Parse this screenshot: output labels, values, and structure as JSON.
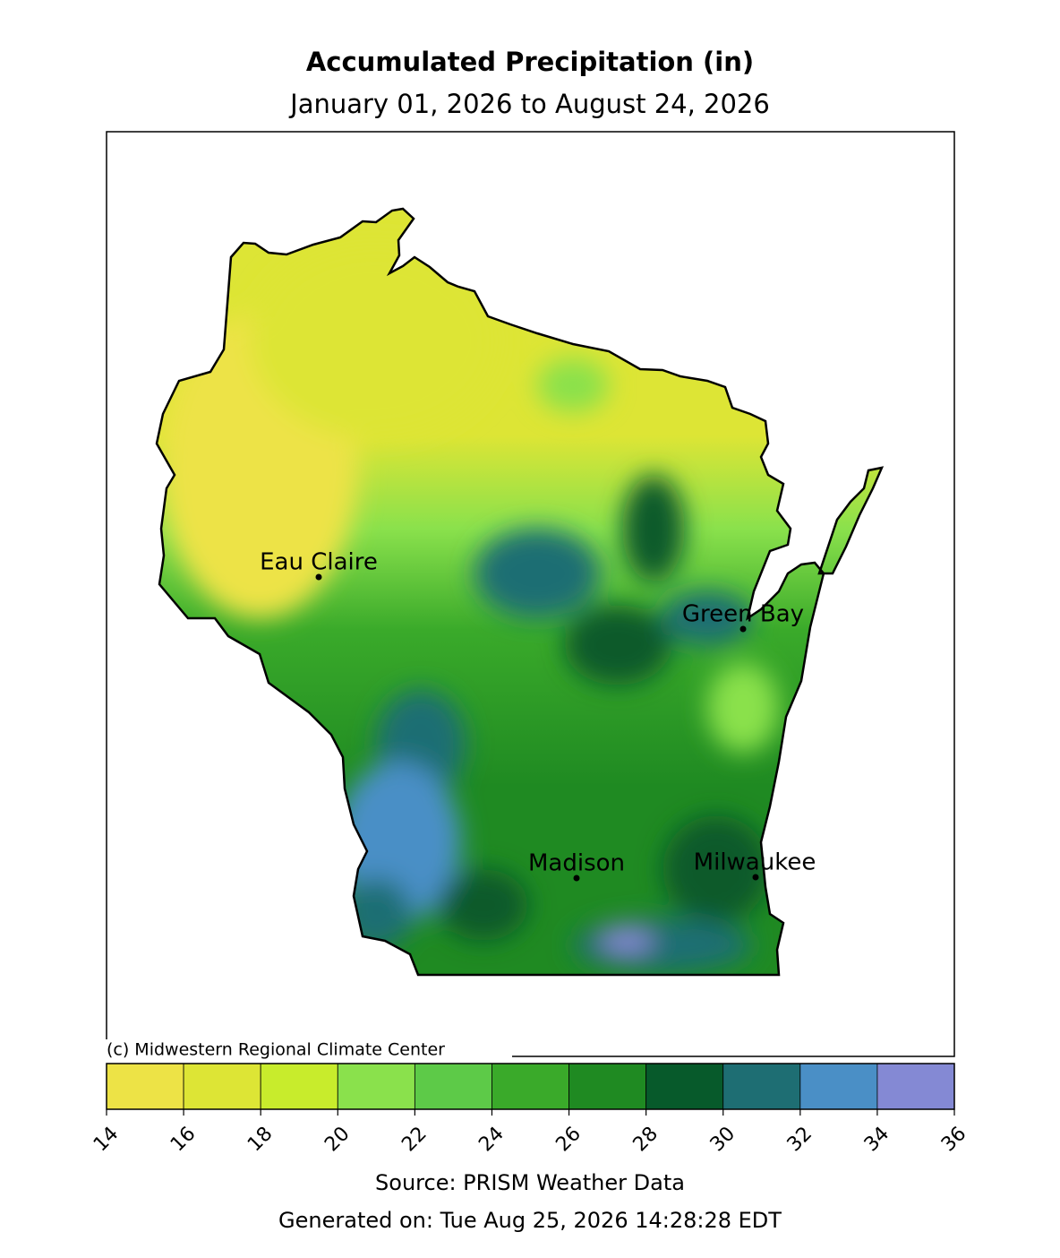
{
  "title": "Accumulated Precipitation (in)",
  "subtitle": "January 01, 2026 to August 24, 2026",
  "map": {
    "cities": [
      {
        "name": "Eau Claire"
      },
      {
        "name": "Green Bay"
      },
      {
        "name": "Madison"
      },
      {
        "name": "Milwaukee"
      }
    ]
  },
  "copyright": "(c) Midwestern Regional Climate Center",
  "colorbar": {
    "ticks": [
      14,
      16,
      18,
      20,
      22,
      24,
      26,
      28,
      30,
      32,
      34,
      36
    ],
    "colors": [
      "#ede346",
      "#dde535",
      "#c8ec2c",
      "#8ae14c",
      "#5dca48",
      "#3aaa2a",
      "#1f8a22",
      "#075a2b",
      "#1e6e73",
      "#4a8fc6",
      "#8489d4"
    ]
  },
  "source": "Source: PRISM Weather Data",
  "generated": "Generated on: Tue Aug 25, 2026 14:28:28 EDT"
}
